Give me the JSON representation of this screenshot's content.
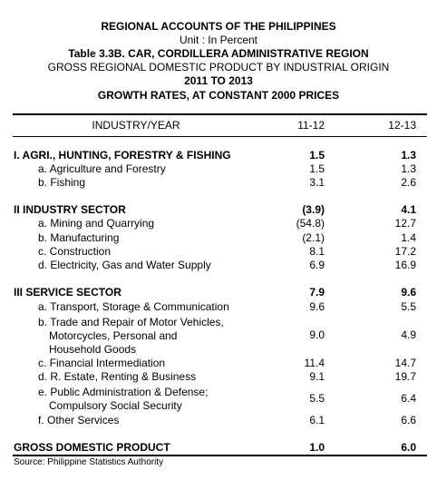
{
  "header": {
    "line1": "REGIONAL ACCOUNTS OF THE PHILIPPINES",
    "line2": "Unit : In Percent",
    "line3": "Table 3.3B.  CAR, CORDILLERA ADMINISTRATIVE REGION",
    "line4": "GROSS REGIONAL DOMESTIC PRODUCT BY INDUSTRIAL ORIGIN",
    "line5": "2011 TO 2013",
    "line6": "GROWTH RATES, AT CONSTANT 2000 PRICES"
  },
  "columns": {
    "industry": "INDUSTRY/YEAR",
    "y1": "11-12",
    "y2": "12-13"
  },
  "rows": {
    "agri": {
      "label": "I. AGRI., HUNTING, FORESTRY & FISHING",
      "v1": "1.5",
      "v2": "1.3"
    },
    "agri_a": {
      "label": "a. Agriculture and Forestry",
      "v1": "1.5",
      "v2": "1.3"
    },
    "agri_b": {
      "label": "b. Fishing",
      "v1": "3.1",
      "v2": "2.6"
    },
    "ind": {
      "label": "II  INDUSTRY SECTOR",
      "v1": "(3.9)",
      "v2": "4.1"
    },
    "ind_a": {
      "label": "a. Mining and Quarrying",
      "v1": "(54.8)",
      "v2": "12.7"
    },
    "ind_b": {
      "label": "b. Manufacturing",
      "v1": "(2.1)",
      "v2": "1.4"
    },
    "ind_c": {
      "label": "c. Construction",
      "v1": "8.1",
      "v2": "17.2"
    },
    "ind_d": {
      "label": "d. Electricity, Gas and Water Supply",
      "v1": "6.9",
      "v2": "16.9"
    },
    "svc": {
      "label": "III  SERVICE SECTOR",
      "v1": "7.9",
      "v2": "9.6"
    },
    "svc_a": {
      "label": "a. Transport, Storage & Communication",
      "v1": "9.6",
      "v2": "5.5"
    },
    "svc_b": {
      "label_1": "b. Trade and Repair of Motor Vehicles,",
      "label_2": "Motorcycles, Personal and",
      "label_3": "Household Goods",
      "v1": "9.0",
      "v2": "4.9"
    },
    "svc_c": {
      "label": "c.  Financial Intermediation",
      "v1": "11.4",
      "v2": "14.7"
    },
    "svc_d": {
      "label": "d. R. Estate, Renting & Business",
      "v1": "9.1",
      "v2": "19.7"
    },
    "svc_e": {
      "label_1": "e. Public Administration & Defense;",
      "label_2": "Compulsory Social Security",
      "v1": "5.5",
      "v2": "6.4"
    },
    "svc_f": {
      "label": "f. Other Services",
      "v1": "6.1",
      "v2": "6.6"
    },
    "gdp": {
      "label": "GROSS DOMESTIC PRODUCT",
      "v1": "1.0",
      "v2": "6.0"
    }
  },
  "source": "Source: Philippine Statistics Authority"
}
